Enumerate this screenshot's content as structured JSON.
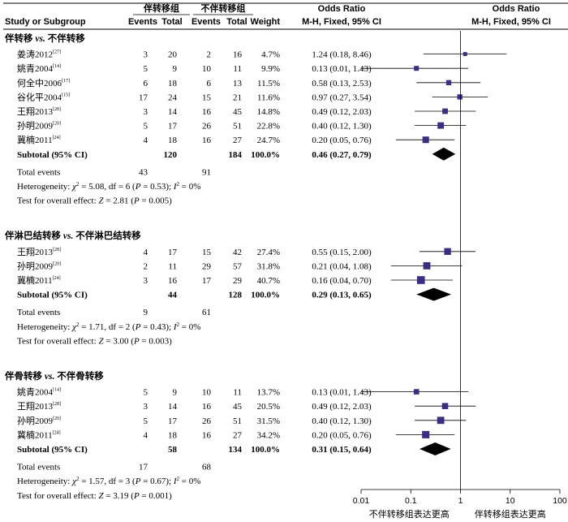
{
  "header": {
    "col1": "Study or Subgroup",
    "grp1": "伴转移组",
    "grp2": "不伴转移组",
    "events": "Events",
    "total": "Total",
    "weight": "Weight",
    "or_title": "Odds Ratio",
    "or_sub": "M-H, Fixed, 95% CI"
  },
  "chart_data": {
    "type": "forest",
    "x_axis": {
      "scale": "log",
      "ticks": [
        "0.01",
        "0.1",
        "1",
        "10",
        "100"
      ],
      "range": [
        0.01,
        100
      ],
      "left_label": "不伴转移组表达更高",
      "right_label": "伴转移组表达更高"
    },
    "subgroups": [
      {
        "title_a": "伴转移",
        "vs": " vs. ",
        "title_b": "不伴转移",
        "studies": [
          {
            "name": "姜涛2012",
            "ref": "[27]",
            "e1": "3",
            "t1": "20",
            "e2": "2",
            "t2": "16",
            "weight": "4.7%",
            "or": 1.24,
            "lo": 0.18,
            "hi": 8.46,
            "ci": "1.24 (0.18, 8.46)"
          },
          {
            "name": "姚青2004",
            "ref": "[14]",
            "e1": "5",
            "t1": "9",
            "e2": "10",
            "t2": "11",
            "weight": "9.9%",
            "or": 0.13,
            "lo": 0.01,
            "hi": 1.43,
            "ci": "0.13 (0.01, 1.43)"
          },
          {
            "name": "何全中2006",
            "ref": "[17]",
            "e1": "6",
            "t1": "18",
            "e2": "6",
            "t2": "13",
            "weight": "11.5%",
            "or": 0.58,
            "lo": 0.13,
            "hi": 2.53,
            "ci": "0.58 (0.13, 2.53)"
          },
          {
            "name": "谷化平2004",
            "ref": "[15]",
            "e1": "17",
            "t1": "24",
            "e2": "15",
            "t2": "21",
            "weight": "11.6%",
            "or": 0.97,
            "lo": 0.27,
            "hi": 3.54,
            "ci": "0.97 (0.27, 3.54)"
          },
          {
            "name": "王翔2013",
            "ref": "[28]",
            "e1": "3",
            "t1": "14",
            "e2": "16",
            "t2": "45",
            "weight": "14.8%",
            "or": 0.49,
            "lo": 0.12,
            "hi": 2.03,
            "ci": "0.49 (0.12, 2.03)"
          },
          {
            "name": "孙明2009",
            "ref": "[20]",
            "e1": "5",
            "t1": "17",
            "e2": "26",
            "t2": "51",
            "weight": "22.8%",
            "or": 0.4,
            "lo": 0.12,
            "hi": 1.3,
            "ci": "0.40 (0.12, 1.30)"
          },
          {
            "name": "冀楠2011",
            "ref": "[24]",
            "e1": "4",
            "t1": "18",
            "e2": "16",
            "t2": "27",
            "weight": "24.7%",
            "or": 0.2,
            "lo": 0.05,
            "hi": 0.76,
            "ci": "0.20 (0.05, 0.76)"
          }
        ],
        "subtotal": {
          "label": "Subtotal (95% CI)",
          "t1": "120",
          "t2": "184",
          "weight": "100.0%",
          "or": 0.46,
          "lo": 0.27,
          "hi": 0.79,
          "ci": "0.46 (0.27, 0.79)"
        },
        "total_events": {
          "label": "Total events",
          "e1": "43",
          "e2": "91"
        },
        "heterogeneity": {
          "prefix": "Heterogeneity: ",
          "chi": "χ",
          "chi_val": " = 5.08, df = 6 (",
          "p": "P",
          "p_val": " = 0.53); ",
          "i": "I",
          "i_val": " = 0%"
        },
        "overall": {
          "prefix": "Test for overall effect: ",
          "z": "Z",
          "z_val": " = 2.81 (",
          "p": "P",
          "p_val": " = 0.005)"
        }
      },
      {
        "title_a": "伴淋巴结转移",
        "vs": " vs. ",
        "title_b": "不伴淋巴结转移",
        "studies": [
          {
            "name": "王翔2013",
            "ref": "[28]",
            "e1": "4",
            "t1": "17",
            "e2": "15",
            "t2": "42",
            "weight": "27.4%",
            "or": 0.55,
            "lo": 0.15,
            "hi": 2.0,
            "ci": "0.55 (0.15, 2.00)"
          },
          {
            "name": "孙明2009",
            "ref": "[20]",
            "e1": "2",
            "t1": "11",
            "e2": "29",
            "t2": "57",
            "weight": "31.8%",
            "or": 0.21,
            "lo": 0.04,
            "hi": 1.08,
            "ci": "0.21 (0.04, 1.08)"
          },
          {
            "name": "冀楠2011",
            "ref": "[24]",
            "e1": "3",
            "t1": "16",
            "e2": "17",
            "t2": "29",
            "weight": "40.7%",
            "or": 0.16,
            "lo": 0.04,
            "hi": 0.7,
            "ci": "0.16 (0.04, 0.70)"
          }
        ],
        "subtotal": {
          "label": "Subtotal (95% CI)",
          "t1": "44",
          "t2": "128",
          "weight": "100.0%",
          "or": 0.29,
          "lo": 0.13,
          "hi": 0.65,
          "ci": "0.29 (0.13, 0.65)"
        },
        "total_events": {
          "label": "Total events",
          "e1": "9",
          "e2": "61"
        },
        "heterogeneity": {
          "prefix": "Heterogeneity: ",
          "chi": "χ",
          "chi_val": " = 1.71, df = 2 (",
          "p": "P",
          "p_val": " = 0.43); ",
          "i": "I",
          "i_val": " = 0%"
        },
        "overall": {
          "prefix": "Test for overall effect: ",
          "z": "Z",
          "z_val": " = 3.00 (",
          "p": "P",
          "p_val": " = 0.003)"
        }
      },
      {
        "title_a": "伴骨转移",
        "vs": " vs. ",
        "title_b": "不伴骨转移",
        "studies": [
          {
            "name": "姚青2004",
            "ref": "[14]",
            "e1": "5",
            "t1": "9",
            "e2": "10",
            "t2": "11",
            "weight": "13.7%",
            "or": 0.13,
            "lo": 0.01,
            "hi": 1.43,
            "ci": "0.13 (0.01, 1.43)"
          },
          {
            "name": "王翔2013",
            "ref": "[28]",
            "e1": "3",
            "t1": "14",
            "e2": "16",
            "t2": "45",
            "weight": "20.5%",
            "or": 0.49,
            "lo": 0.12,
            "hi": 2.03,
            "ci": "0.49 (0.12, 2.03)"
          },
          {
            "name": "孙明2009",
            "ref": "[20]",
            "e1": "5",
            "t1": "17",
            "e2": "26",
            "t2": "51",
            "weight": "31.5%",
            "or": 0.4,
            "lo": 0.12,
            "hi": 1.3,
            "ci": "0.40 (0.12, 1.30)"
          },
          {
            "name": "冀楠2011",
            "ref": "[24]",
            "e1": "4",
            "t1": "18",
            "e2": "16",
            "t2": "27",
            "weight": "34.2%",
            "or": 0.2,
            "lo": 0.05,
            "hi": 0.76,
            "ci": "0.20 (0.05, 0.76)"
          }
        ],
        "subtotal": {
          "label": "Subtotal (95% CI)",
          "t1": "58",
          "t2": "134",
          "weight": "100.0%",
          "or": 0.31,
          "lo": 0.15,
          "hi": 0.64,
          "ci": "0.31 (0.15, 0.64)"
        },
        "total_events": {
          "label": "Total events",
          "e1": "17",
          "e2": "68"
        },
        "heterogeneity": {
          "prefix": "Heterogeneity: ",
          "chi": "χ",
          "chi_val": " = 1.57, df = 3 (",
          "p": "P",
          "p_val": " = 0.67); ",
          "i": "I",
          "i_val": " = 0%"
        },
        "overall": {
          "prefix": "Test for overall effect: ",
          "z": "Z",
          "z_val": " = 3.19 (",
          "p": "P",
          "p_val": " = 0.001)"
        }
      }
    ],
    "colors": {
      "marker": "#3b2d86",
      "diamond": "#000000",
      "line": "#000000"
    }
  }
}
